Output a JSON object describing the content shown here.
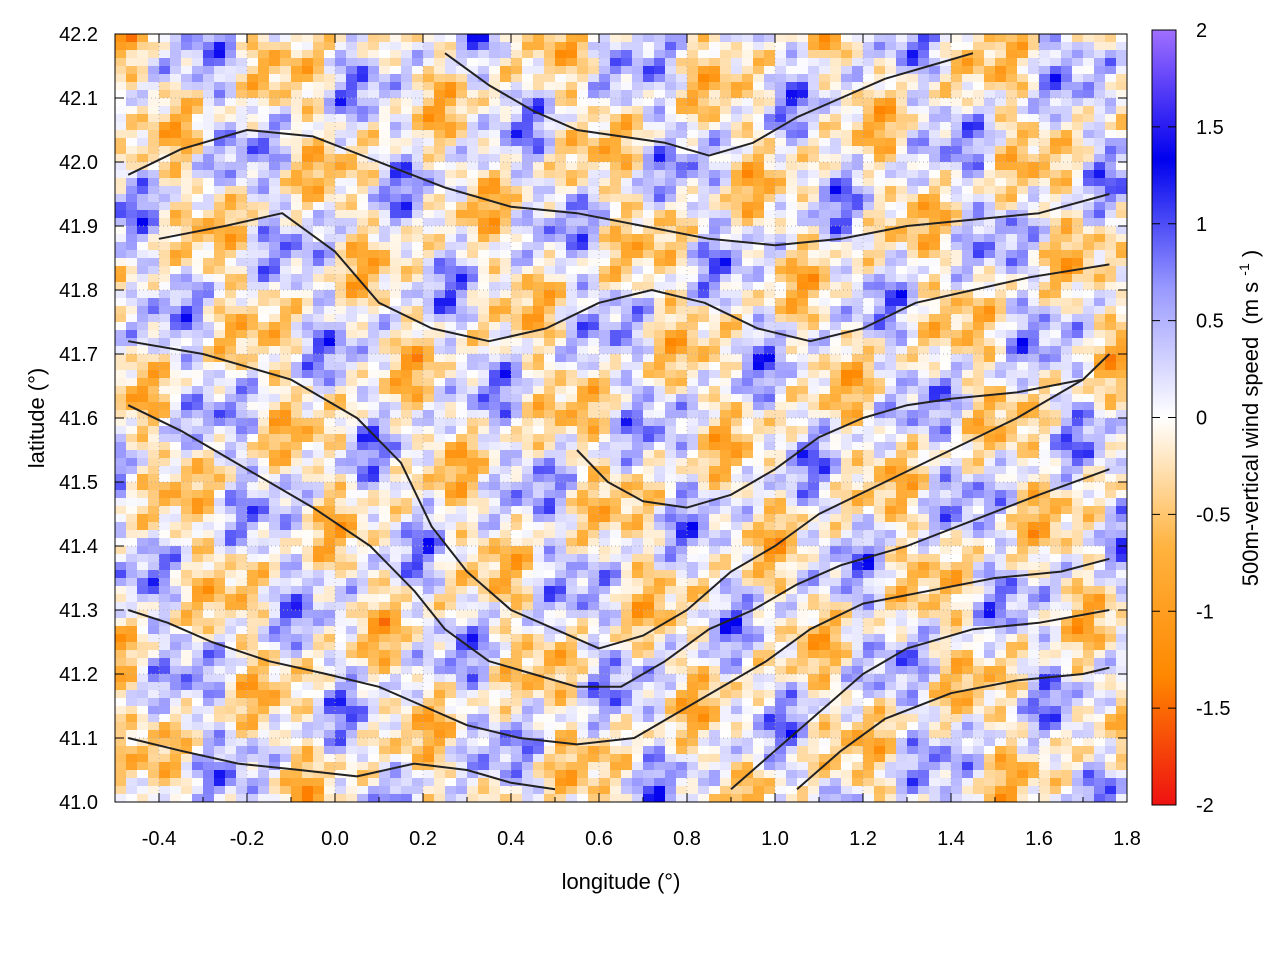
{
  "chart_data": {
    "type": "heatmap",
    "title": "",
    "xlabel": "longitude (°)",
    "ylabel": "latitude (°)",
    "xlim": [
      -0.5,
      1.8
    ],
    "ylim": [
      41.0,
      42.2
    ],
    "x_ticks": [
      -0.4,
      -0.2,
      0.0,
      0.2,
      0.4,
      0.6,
      0.8,
      1.0,
      1.2,
      1.4,
      1.6,
      1.8
    ],
    "x_tick_labels": [
      "-0.4",
      "-0.2",
      "0.0",
      "0.2",
      "0.4",
      "0.6",
      "0.8",
      "1.0",
      "1.2",
      "1.4",
      "1.6",
      "1.8"
    ],
    "y_ticks": [
      41.0,
      41.1,
      41.2,
      41.3,
      41.4,
      41.5,
      41.6,
      41.7,
      41.8,
      41.9,
      42.0,
      42.1,
      42.2
    ],
    "y_tick_labels": [
      "41.0",
      "41.1",
      "41.2",
      "41.3",
      "41.4",
      "41.5",
      "41.6",
      "41.7",
      "41.8",
      "41.9",
      "42.0",
      "42.1",
      "42.2"
    ],
    "grid": true,
    "colorbar": {
      "label": "500m-vertical wind speed",
      "unit_prefix": "(m s",
      "unit_exp": "-1",
      "unit_suffix": ")",
      "range": [
        -2,
        2
      ],
      "ticks": [
        -2,
        -1.5,
        -1,
        -0.5,
        0,
        0.5,
        1,
        1.5,
        2
      ],
      "tick_labels": [
        "-2",
        "-1.5",
        "-1",
        "-0.5",
        "0",
        "0.5",
        "1",
        "1.5",
        "2"
      ],
      "colors": [
        "#ee1111",
        "#ff8800",
        "#ffb340",
        "#ffffff",
        "#9999ff",
        "#0000ee",
        "#a070ff"
      ]
    },
    "contours": [
      {
        "level": "c1",
        "points": [
          [
            -0.47,
            41.72
          ],
          [
            -0.3,
            41.7
          ],
          [
            -0.1,
            41.66
          ],
          [
            0.05,
            41.6
          ],
          [
            0.15,
            41.53
          ],
          [
            0.22,
            41.43
          ],
          [
            0.3,
            41.36
          ],
          [
            0.4,
            41.3
          ],
          [
            0.5,
            41.27
          ],
          [
            0.6,
            41.24
          ],
          [
            0.7,
            41.26
          ],
          [
            0.8,
            41.3
          ],
          [
            0.9,
            41.36
          ],
          [
            1.0,
            41.4
          ],
          [
            1.1,
            41.45
          ],
          [
            1.25,
            41.5
          ],
          [
            1.4,
            41.55
          ],
          [
            1.55,
            41.6
          ],
          [
            1.7,
            41.66
          ],
          [
            1.76,
            41.7
          ]
        ]
      },
      {
        "level": "c2",
        "points": [
          [
            -0.47,
            41.62
          ],
          [
            -0.35,
            41.58
          ],
          [
            -0.2,
            41.52
          ],
          [
            -0.05,
            41.46
          ],
          [
            0.08,
            41.4
          ],
          [
            0.18,
            41.33
          ],
          [
            0.25,
            41.27
          ],
          [
            0.35,
            41.22
          ],
          [
            0.45,
            41.2
          ],
          [
            0.55,
            41.18
          ],
          [
            0.65,
            41.18
          ],
          [
            0.75,
            41.22
          ],
          [
            0.85,
            41.27
          ],
          [
            0.95,
            41.3
          ],
          [
            1.05,
            41.34
          ],
          [
            1.15,
            41.37
          ],
          [
            1.3,
            41.4
          ],
          [
            1.45,
            41.44
          ],
          [
            1.6,
            41.48
          ],
          [
            1.76,
            41.52
          ]
        ]
      },
      {
        "level": "c3",
        "points": [
          [
            -0.47,
            41.3
          ],
          [
            -0.38,
            41.28
          ],
          [
            -0.28,
            41.25
          ],
          [
            -0.15,
            41.22
          ],
          [
            -0.02,
            41.2
          ],
          [
            0.1,
            41.18
          ],
          [
            0.2,
            41.15
          ],
          [
            0.3,
            41.12
          ],
          [
            0.42,
            41.1
          ],
          [
            0.55,
            41.09
          ],
          [
            0.68,
            41.1
          ],
          [
            0.78,
            41.14
          ],
          [
            0.88,
            41.18
          ],
          [
            0.98,
            41.22
          ],
          [
            1.08,
            41.27
          ],
          [
            1.2,
            41.31
          ],
          [
            1.35,
            41.33
          ],
          [
            1.5,
            41.35
          ],
          [
            1.65,
            41.36
          ],
          [
            1.76,
            41.38
          ]
        ]
      },
      {
        "level": "c4",
        "points": [
          [
            -0.47,
            41.1
          ],
          [
            -0.35,
            41.08
          ],
          [
            -0.22,
            41.06
          ],
          [
            -0.08,
            41.05
          ],
          [
            0.05,
            41.04
          ],
          [
            0.18,
            41.06
          ],
          [
            0.3,
            41.05
          ],
          [
            0.4,
            41.03
          ],
          [
            0.5,
            41.02
          ]
        ]
      },
      {
        "level": "c5",
        "points": [
          [
            0.9,
            41.02
          ],
          [
            1.0,
            41.08
          ],
          [
            1.1,
            41.14
          ],
          [
            1.2,
            41.2
          ],
          [
            1.3,
            41.24
          ],
          [
            1.45,
            41.27
          ],
          [
            1.6,
            41.28
          ],
          [
            1.76,
            41.3
          ]
        ]
      },
      {
        "level": "c6",
        "points": [
          [
            1.05,
            41.02
          ],
          [
            1.15,
            41.08
          ],
          [
            1.25,
            41.13
          ],
          [
            1.4,
            41.17
          ],
          [
            1.55,
            41.19
          ],
          [
            1.7,
            41.2
          ],
          [
            1.76,
            41.21
          ]
        ]
      },
      {
        "level": "c7",
        "points": [
          [
            -0.47,
            41.98
          ],
          [
            -0.35,
            42.02
          ],
          [
            -0.2,
            42.05
          ],
          [
            -0.05,
            42.04
          ],
          [
            0.1,
            42.0
          ],
          [
            0.25,
            41.96
          ],
          [
            0.4,
            41.93
          ],
          [
            0.55,
            41.92
          ],
          [
            0.7,
            41.9
          ],
          [
            0.85,
            41.88
          ],
          [
            1.0,
            41.87
          ],
          [
            1.15,
            41.88
          ],
          [
            1.3,
            41.9
          ],
          [
            1.45,
            41.91
          ],
          [
            1.6,
            41.92
          ],
          [
            1.76,
            41.95
          ]
        ]
      },
      {
        "level": "c8",
        "points": [
          [
            -0.4,
            41.88
          ],
          [
            -0.25,
            41.9
          ],
          [
            -0.12,
            41.92
          ],
          [
            0.0,
            41.86
          ],
          [
            0.1,
            41.78
          ],
          [
            0.22,
            41.74
          ],
          [
            0.35,
            41.72
          ],
          [
            0.48,
            41.74
          ],
          [
            0.6,
            41.78
          ],
          [
            0.72,
            41.8
          ],
          [
            0.84,
            41.78
          ],
          [
            0.96,
            41.74
          ],
          [
            1.08,
            41.72
          ],
          [
            1.2,
            41.74
          ],
          [
            1.32,
            41.78
          ],
          [
            1.45,
            41.8
          ],
          [
            1.58,
            41.82
          ],
          [
            1.76,
            41.84
          ]
        ]
      },
      {
        "level": "c9",
        "points": [
          [
            0.25,
            42.17
          ],
          [
            0.35,
            42.12
          ],
          [
            0.45,
            42.08
          ],
          [
            0.55,
            42.05
          ],
          [
            0.65,
            42.04
          ],
          [
            0.75,
            42.03
          ],
          [
            0.85,
            42.01
          ],
          [
            0.95,
            42.03
          ],
          [
            1.05,
            42.07
          ],
          [
            1.15,
            42.1
          ],
          [
            1.25,
            42.13
          ],
          [
            1.35,
            42.15
          ],
          [
            1.45,
            42.17
          ]
        ]
      },
      {
        "level": "c10",
        "points": [
          [
            0.55,
            41.55
          ],
          [
            0.62,
            41.5
          ],
          [
            0.7,
            41.47
          ],
          [
            0.8,
            41.46
          ],
          [
            0.9,
            41.48
          ],
          [
            1.0,
            41.52
          ],
          [
            1.1,
            41.57
          ],
          [
            1.2,
            41.6
          ],
          [
            1.3,
            41.62
          ],
          [
            1.4,
            41.63
          ],
          [
            1.55,
            41.64
          ],
          [
            1.7,
            41.66
          ]
        ]
      }
    ]
  }
}
